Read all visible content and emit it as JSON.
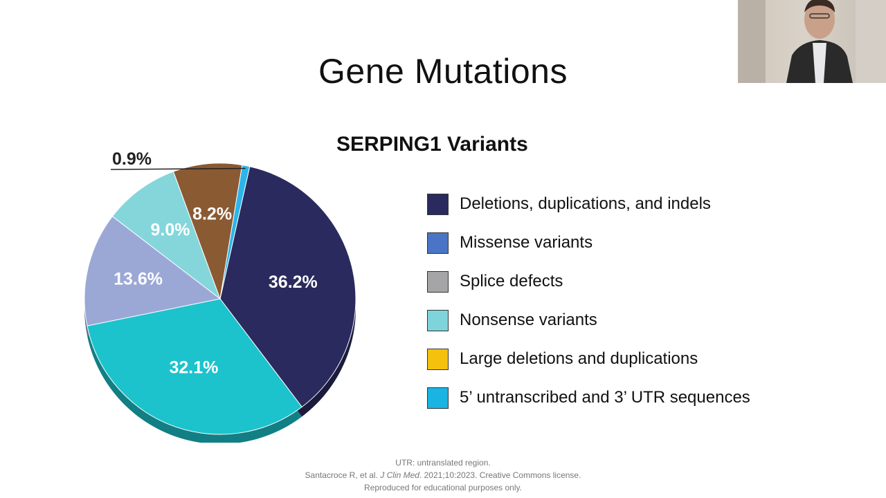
{
  "slide": {
    "title": "Gene Mutations"
  },
  "chart_data": {
    "type": "pie",
    "title": "SERPING1 Variants",
    "series": [
      {
        "labels": [
          "Deletions, duplications, and indels",
          "Missense variants",
          "Splice defects",
          "Nonsense variants",
          "Large deletions and duplications",
          "5’ untranscribed and 3’ UTR sequences"
        ],
        "values": [
          36.2,
          32.1,
          13.6,
          9.0,
          8.2,
          0.9
        ],
        "value_labels": [
          "36.2%",
          "32.1%",
          "13.6%",
          "9.0%",
          "8.2%",
          "0.9%"
        ]
      }
    ],
    "legend_placement": "right",
    "slice_colors": [
      "#2a2a5e",
      "#1cc3cc",
      "#9ba8d6",
      "#84d6db",
      "#8a5a32",
      "#2bb5ea"
    ]
  },
  "legend": {
    "items": [
      {
        "label": "Deletions, duplications, and indels",
        "color": "#2a2a5e"
      },
      {
        "label": "Missense variants",
        "color": "#4a75c6"
      },
      {
        "label": "Splice defects",
        "color": "#a5a5a8"
      },
      {
        "label": "Nonsense variants",
        "color": "#7fd4dc"
      },
      {
        "label": "Large deletions and duplications",
        "color": "#f4c20d"
      },
      {
        "label": "5’ untranscribed and 3’ UTR sequences",
        "color": "#19b4e2"
      }
    ]
  },
  "footnote": {
    "line1": "UTR: untranslated region.",
    "line2_authors": "Santacroce R, et al. ",
    "line2_journal": "J Clin Med",
    "line2_rest": ". 2021;10:2023. Creative Commons license.",
    "line3": "Reproduced for educational purposes only."
  },
  "webcam": {
    "description_icon": "presenter-video-icon"
  }
}
